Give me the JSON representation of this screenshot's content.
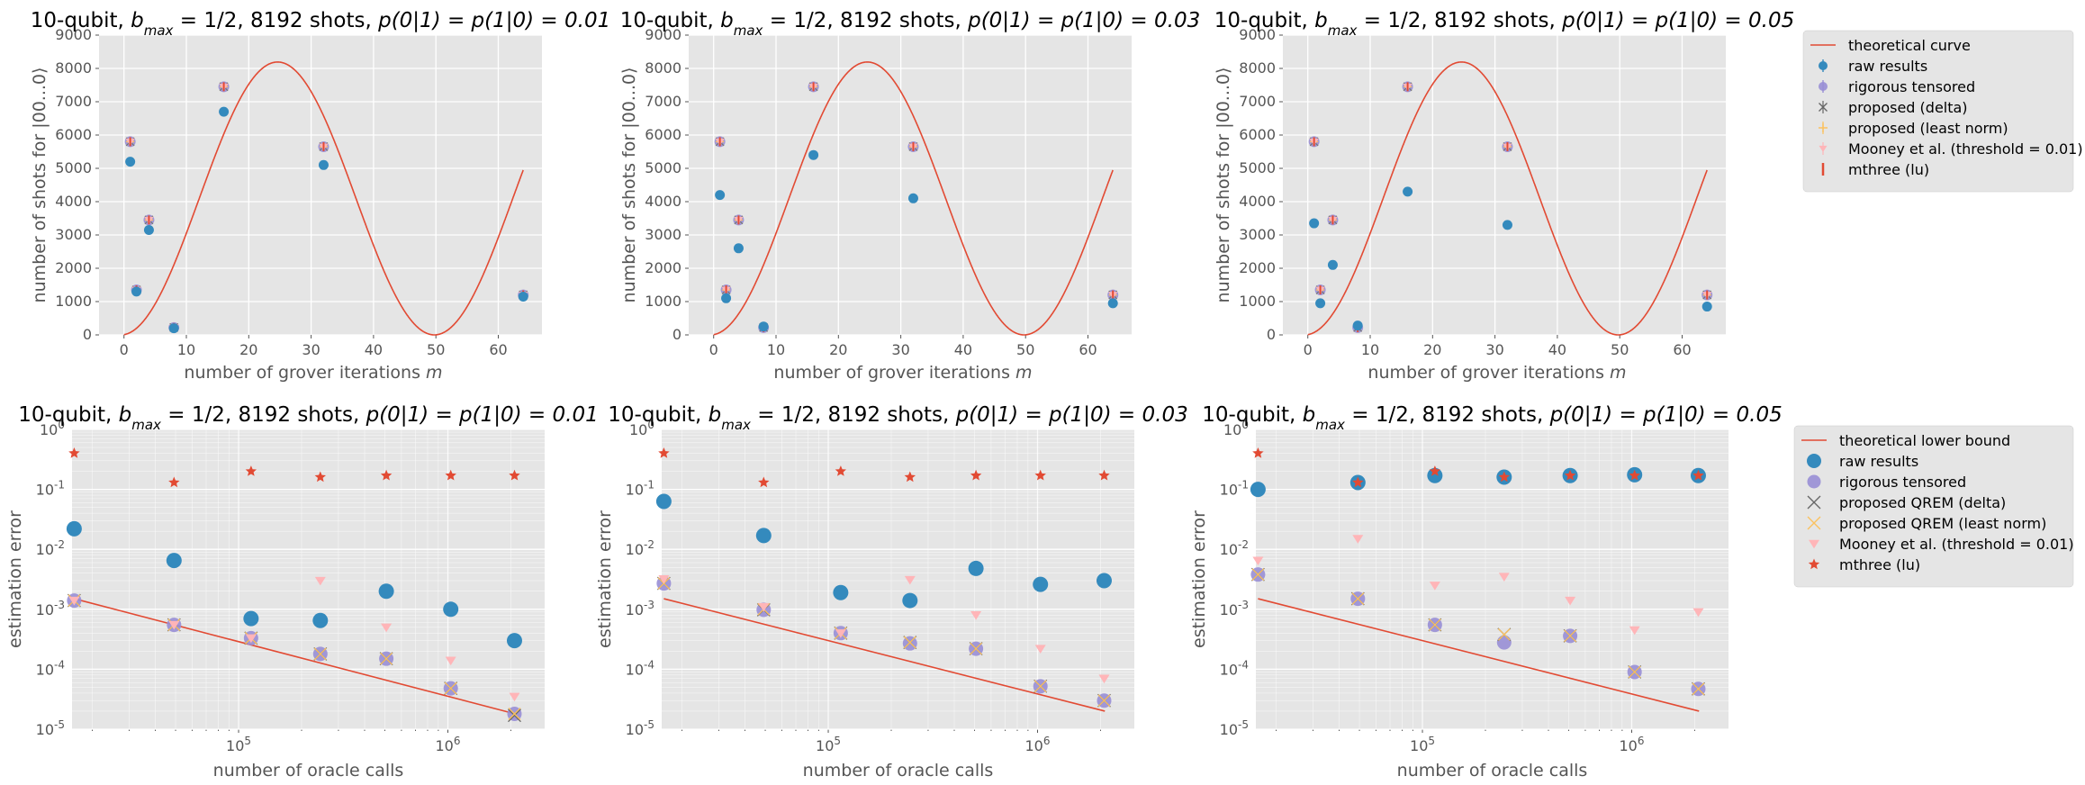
{
  "chart_data": [
    {
      "type": "scatter",
      "title_prefix": "10-qubit, ",
      "title_math": "b_max = 1/2",
      "title_mid": ", 8192 shots, ",
      "title_p": "p(0|1) = p(1|0) = 0.01",
      "xlabel": "number of grover iterations m",
      "ylabel": "number of shots for |00...0⟩",
      "xlim": [
        -4,
        67
      ],
      "ylim": [
        0,
        9000
      ],
      "xticks": [
        0,
        10,
        20,
        30,
        40,
        50,
        60
      ],
      "yticks": [
        0,
        1000,
        2000,
        3000,
        4000,
        5000,
        6000,
        7000,
        8000,
        9000
      ],
      "grid": true,
      "theory": "theoretical curve",
      "x": [
        1,
        2,
        4,
        8,
        16,
        32,
        64
      ],
      "series": [
        {
          "name": "raw results",
          "values": [
            5200,
            1300,
            3150,
            200,
            6700,
            5100,
            1150
          ]
        },
        {
          "name": "rigorous tensored",
          "values": [
            5800,
            1350,
            3450,
            220,
            7450,
            5650,
            1200
          ]
        },
        {
          "name": "proposed (delta)",
          "values": [
            5800,
            1350,
            3450,
            220,
            7450,
            5650,
            1200
          ]
        },
        {
          "name": "proposed (least norm)",
          "values": [
            5800,
            1350,
            3450,
            220,
            7450,
            5650,
            1200
          ]
        },
        {
          "name": "Mooney et al. (threshold = 0.01)",
          "values": [
            5800,
            1350,
            3450,
            220,
            7450,
            5650,
            1200
          ]
        },
        {
          "name": "mthree (lu)",
          "values": [
            5800,
            1350,
            3450,
            220,
            7450,
            5650,
            1200
          ]
        }
      ]
    },
    {
      "type": "scatter",
      "title_prefix": "10-qubit, ",
      "title_math": "b_max = 1/2",
      "title_mid": ", 8192 shots, ",
      "title_p": "p(0|1) = p(1|0) = 0.03",
      "xlabel": "number of grover iterations m",
      "ylabel": "number of shots for |00...0⟩",
      "xlim": [
        -4,
        67
      ],
      "ylim": [
        0,
        9000
      ],
      "xticks": [
        0,
        10,
        20,
        30,
        40,
        50,
        60
      ],
      "yticks": [
        0,
        1000,
        2000,
        3000,
        4000,
        5000,
        6000,
        7000,
        8000,
        9000
      ],
      "grid": true,
      "theory": "theoretical curve",
      "x": [
        1,
        2,
        4,
        8,
        16,
        32,
        64
      ],
      "series": [
        {
          "name": "raw results",
          "values": [
            4200,
            1100,
            2600,
            250,
            5400,
            4100,
            950
          ]
        },
        {
          "name": "rigorous tensored",
          "values": [
            5800,
            1350,
            3450,
            220,
            7450,
            5650,
            1200
          ]
        },
        {
          "name": "proposed (delta)",
          "values": [
            5800,
            1350,
            3450,
            220,
            7450,
            5650,
            1200
          ]
        },
        {
          "name": "proposed (least norm)",
          "values": [
            5800,
            1350,
            3450,
            220,
            7450,
            5650,
            1200
          ]
        },
        {
          "name": "Mooney et al. (threshold = 0.01)",
          "values": [
            5800,
            1350,
            3450,
            220,
            7450,
            5650,
            1200
          ]
        },
        {
          "name": "mthree (lu)",
          "values": [
            5800,
            1350,
            3450,
            220,
            7450,
            5650,
            1200
          ]
        }
      ]
    },
    {
      "type": "scatter",
      "title_prefix": "10-qubit, ",
      "title_math": "b_max = 1/2",
      "title_mid": ", 8192 shots, ",
      "title_p": "p(0|1) = p(1|0) = 0.05",
      "xlabel": "number of grover iterations m",
      "ylabel": "number of shots for |00...0⟩",
      "xlim": [
        -4,
        67
      ],
      "ylim": [
        0,
        9000
      ],
      "xticks": [
        0,
        10,
        20,
        30,
        40,
        50,
        60
      ],
      "yticks": [
        0,
        1000,
        2000,
        3000,
        4000,
        5000,
        6000,
        7000,
        8000,
        9000
      ],
      "grid": true,
      "theory": "theoretical curve",
      "x": [
        1,
        2,
        4,
        8,
        16,
        32,
        64
      ],
      "series": [
        {
          "name": "raw results",
          "values": [
            3350,
            950,
            2100,
            280,
            4300,
            3300,
            850
          ]
        },
        {
          "name": "rigorous tensored",
          "values": [
            5800,
            1350,
            3450,
            220,
            7450,
            5650,
            1200
          ]
        },
        {
          "name": "proposed (delta)",
          "values": [
            5800,
            1350,
            3450,
            220,
            7450,
            5650,
            1200
          ]
        },
        {
          "name": "proposed (least norm)",
          "values": [
            5800,
            1350,
            3450,
            220,
            7450,
            5650,
            1200
          ]
        },
        {
          "name": "Mooney et al. (threshold = 0.01)",
          "values": [
            5800,
            1350,
            3450,
            220,
            7450,
            5650,
            1200
          ]
        },
        {
          "name": "mthree (lu)",
          "values": [
            5800,
            1350,
            3450,
            220,
            7450,
            5650,
            1200
          ]
        }
      ]
    },
    {
      "type": "scatter",
      "log_x": true,
      "log_y": true,
      "title_prefix": "10-qubit, ",
      "title_math": "b_max = 1/2",
      "title_mid": ", 8192 shots, ",
      "title_p": "p(0|1) = p(1|0) = 0.01",
      "xlabel": "number of oracle calls",
      "ylabel": "estimation error",
      "xlim": [
        16000,
        2900000
      ],
      "ylim": [
        1e-05,
        1
      ],
      "xticks": [
        "10^5",
        "10^6"
      ],
      "yticks": [
        "10^-5",
        "10^-4",
        "10^-3",
        "10^-2",
        "10^-1",
        "10^0"
      ],
      "grid": true,
      "theory": "theoretical lower bound",
      "theory_points": [
        [
          16384,
          0.0015
        ],
        [
          2097152,
          1.8e-05
        ]
      ],
      "x": [
        16384,
        49152,
        114688,
        245760,
        507904,
        1032192,
        2080768
      ],
      "series": [
        {
          "name": "raw results",
          "values": [
            0.022,
            0.0065,
            0.0007,
            0.00065,
            0.002,
            0.001,
            0.0003
          ]
        },
        {
          "name": "rigorous tensored",
          "values": [
            0.0014,
            0.00055,
            0.00033,
            0.00018,
            0.00015,
            4.8e-05,
            1.8e-05
          ]
        },
        {
          "name": "proposed QREM (delta)",
          "values": [
            0.0014,
            0.00055,
            0.00033,
            0.00018,
            0.00015,
            4.8e-05,
            1.7e-05
          ]
        },
        {
          "name": "proposed QREM (least norm)",
          "values": [
            0.0014,
            0.00055,
            0.00033,
            0.00018,
            0.00015,
            4.8e-05,
            1.8e-05
          ]
        },
        {
          "name": "Mooney et al. (threshold = 0.01)",
          "values": [
            0.0014,
            0.00055,
            0.00033,
            0.003,
            0.0005,
            0.00014,
            3.5e-05
          ]
        },
        {
          "name": "mthree (lu)",
          "values": [
            0.4,
            0.13,
            0.2,
            0.16,
            0.17,
            0.17,
            0.17
          ]
        }
      ]
    },
    {
      "type": "scatter",
      "log_x": true,
      "log_y": true,
      "title_prefix": "10-qubit, ",
      "title_math": "b_max = 1/2",
      "title_mid": ", 8192 shots, ",
      "title_p": "p(0|1) = p(1|0) = 0.03",
      "xlabel": "number of oracle calls",
      "ylabel": "estimation error",
      "xlim": [
        16000,
        2900000
      ],
      "ylim": [
        1e-05,
        1
      ],
      "xticks": [
        "10^5",
        "10^6"
      ],
      "yticks": [
        "10^-5",
        "10^-4",
        "10^-3",
        "10^-2",
        "10^-1",
        "10^0"
      ],
      "grid": true,
      "theory": "theoretical lower bound",
      "theory_points": [
        [
          16384,
          0.0015
        ],
        [
          2097152,
          2e-05
        ]
      ],
      "x": [
        16384,
        49152,
        114688,
        245760,
        507904,
        1032192,
        2080768
      ],
      "series": [
        {
          "name": "raw results",
          "values": [
            0.063,
            0.017,
            0.0019,
            0.0014,
            0.0048,
            0.0026,
            0.003
          ]
        },
        {
          "name": "rigorous tensored",
          "values": [
            0.0027,
            0.00098,
            0.0004,
            0.00027,
            0.00022,
            5.2e-05,
            3e-05
          ]
        },
        {
          "name": "proposed QREM (delta)",
          "values": [
            0.0027,
            0.00098,
            0.0004,
            0.00028,
            0.00022,
            5.2e-05,
            3e-05
          ]
        },
        {
          "name": "proposed QREM (least norm)",
          "values": [
            0.0027,
            0.001,
            0.0004,
            0.00028,
            0.00022,
            5.2e-05,
            3e-05
          ]
        },
        {
          "name": "Mooney et al. (threshold = 0.01)",
          "values": [
            0.0032,
            0.0011,
            0.0004,
            0.0031,
            0.0008,
            0.00022,
            7e-05
          ]
        },
        {
          "name": "mthree (lu)",
          "values": [
            0.4,
            0.13,
            0.2,
            0.16,
            0.17,
            0.17,
            0.17
          ]
        }
      ]
    },
    {
      "type": "scatter",
      "log_x": true,
      "log_y": true,
      "title_prefix": "10-qubit, ",
      "title_math": "b_max = 1/2",
      "title_mid": ", 8192 shots, ",
      "title_p": "p(0|1) = p(1|0) = 0.05",
      "xlabel": "number of oracle calls",
      "ylabel": "estimation error",
      "xlim": [
        16000,
        2900000
      ],
      "ylim": [
        1e-05,
        1
      ],
      "xticks": [
        "10^5",
        "10^6"
      ],
      "yticks": [
        "10^-5",
        "10^-4",
        "10^-3",
        "10^-2",
        "10^-1",
        "10^0"
      ],
      "grid": true,
      "theory": "theoretical lower bound",
      "theory_points": [
        [
          16384,
          0.0015
        ],
        [
          2097152,
          2e-05
        ]
      ],
      "x": [
        16384,
        49152,
        114688,
        245760,
        507904,
        1032192,
        2080768
      ],
      "series": [
        {
          "name": "raw results",
          "values": [
            0.1,
            0.13,
            0.17,
            0.16,
            0.17,
            0.175,
            0.17
          ]
        },
        {
          "name": "rigorous tensored",
          "values": [
            0.0038,
            0.0015,
            0.00055,
            0.00028,
            0.00036,
            9e-05,
            4.7e-05
          ]
        },
        {
          "name": "proposed QREM (delta)",
          "values": [
            0.0038,
            0.0015,
            0.00055,
            0.00038,
            0.00036,
            9e-05,
            4.7e-05
          ]
        },
        {
          "name": "proposed QREM (least norm)",
          "values": [
            0.0038,
            0.0015,
            0.00055,
            0.00038,
            0.00036,
            9e-05,
            4.7e-05
          ]
        },
        {
          "name": "Mooney et al. (threshold = 0.01)",
          "values": [
            0.0065,
            0.015,
            0.0025,
            0.0035,
            0.0014,
            0.00045,
            0.0009
          ]
        },
        {
          "name": "mthree (lu)",
          "values": [
            0.4,
            0.13,
            0.2,
            0.16,
            0.17,
            0.17,
            0.17
          ]
        }
      ]
    }
  ],
  "legend_top": [
    "theoretical curve",
    "raw results",
    "rigorous tensored",
    "proposed (delta)",
    "proposed (least norm)",
    "Mooney et al. (threshold = 0.01)",
    "mthree (lu)"
  ],
  "legend_bottom": [
    "theoretical lower bound",
    "raw results",
    "rigorous tensored",
    "proposed QREM (delta)",
    "proposed QREM (least norm)",
    "Mooney et al. (threshold = 0.01)",
    "mthree (lu)"
  ],
  "colors": {
    "theory": "#E24A33",
    "raw": "#348ABD",
    "rigorous": "#988ED5",
    "delta": "#777777",
    "leastnorm": "#FBC15E",
    "mooney": "#FFB5B8",
    "mthree": "#E24A33",
    "panel_bg": "#E5E5E5",
    "grid": "#FFFFFF"
  }
}
